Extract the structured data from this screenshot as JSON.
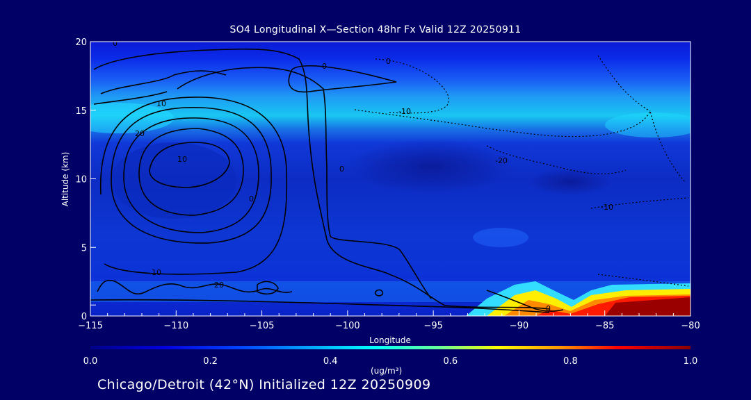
{
  "chart_data": {
    "type": "heatmap",
    "title": "SO4 Longitudinal X—Section 48hr  Fx Valid 12Z 20250911",
    "xlabel": "Longitude",
    "ylabel": "Altitude (km)",
    "xlim": [
      -115,
      -80
    ],
    "ylim": [
      0,
      20
    ],
    "xticks": [
      -115,
      -110,
      -105,
      -100,
      -95,
      -90,
      -85,
      -80
    ],
    "xtick_labels": [
      "−115",
      "−110",
      "−105",
      "−100",
      "−95",
      "−90",
      "−85",
      "−80"
    ],
    "yticks": [
      0,
      5,
      10,
      15,
      20
    ],
    "ytick_labels": [
      "0",
      "5",
      "10",
      "15",
      "20"
    ],
    "colorbar": {
      "min": 0.0,
      "max": 1.0,
      "ticks": [
        0.0,
        0.2,
        0.4,
        0.6,
        0.8,
        1.0
      ],
      "tick_labels": [
        "0.0",
        "0.2",
        "0.4",
        "0.6",
        "0.8",
        "1.0"
      ],
      "unit": "(ug/m³)",
      "colormap": [
        "#00008a",
        "#0000dd",
        "#0044ff",
        "#00aaff",
        "#00ffff",
        "#66ff99",
        "#ffff00",
        "#ff9900",
        "#ff0000",
        "#8b0000"
      ]
    },
    "field_regions": [
      {
        "name": "upper-cyan-band",
        "lon_range": [
          -115,
          -80
        ],
        "alt_range": [
          12.5,
          16
        ],
        "value": 0.35
      },
      {
        "name": "stratosphere",
        "lon_range": [
          -115,
          -80
        ],
        "alt_range": [
          16,
          20
        ],
        "value": 0.18
      },
      {
        "name": "mid-troposphere",
        "lon_range": [
          -115,
          -80
        ],
        "alt_range": [
          2,
          12.5
        ],
        "value": 0.12
      },
      {
        "name": "low-level-plume",
        "lon_range": [
          -92,
          -80
        ],
        "alt_range": [
          0,
          2
        ],
        "value": 0.85
      }
    ],
    "contour_labels": [
      "10",
      "20",
      "10",
      "0",
      "0",
      "-10",
      "-20",
      "-10",
      "10",
      "20",
      "0",
      "0",
      "0",
      "0"
    ]
  },
  "footer": "Chicago/Detroit (42°N) Initialized 12Z 20250909"
}
